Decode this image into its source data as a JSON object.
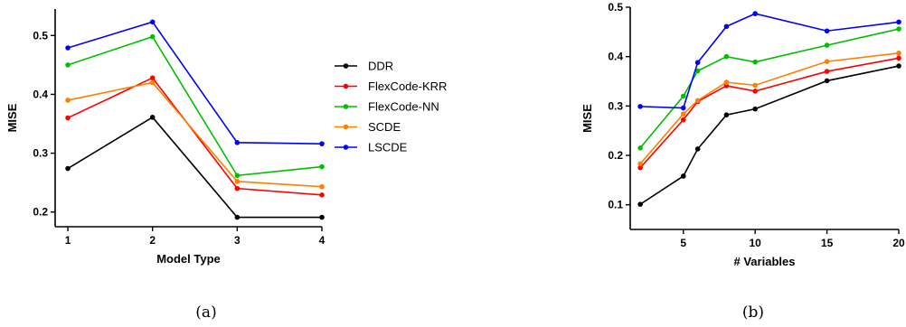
{
  "chart_data": [
    {
      "type": "line",
      "caption": "(a)",
      "xlabel": "Model Type",
      "ylabel": "MISE",
      "xlim": [
        0.85,
        4.0
      ],
      "ylim": [
        0.175,
        0.545
      ],
      "xticks": [
        1,
        2,
        3,
        4
      ],
      "yticks": [
        0.2,
        0.3,
        0.4,
        0.5
      ],
      "x": [
        1,
        2,
        3,
        4
      ],
      "series": [
        {
          "name": "DDR",
          "color": "#000000",
          "values": [
            0.274,
            0.361,
            0.191,
            0.191
          ]
        },
        {
          "name": "FlexCode-KRR",
          "color": "#ff0000",
          "values": [
            0.36,
            0.428,
            0.24,
            0.229
          ]
        },
        {
          "name": "FlexCode-NN",
          "color": "#00bf00",
          "values": [
            0.45,
            0.498,
            0.262,
            0.277
          ]
        },
        {
          "name": "SCDE",
          "color": "#ff8000",
          "values": [
            0.39,
            0.42,
            0.252,
            0.243
          ]
        },
        {
          "name": "LSCDE",
          "color": "#0000ff",
          "values": [
            0.479,
            0.523,
            0.318,
            0.316
          ]
        }
      ],
      "legend": "right"
    },
    {
      "type": "line",
      "caption": "(b)",
      "xlabel": "# Variables",
      "ylabel": "MISE",
      "xlim": [
        1.3,
        20
      ],
      "ylim": [
        0.05,
        0.5
      ],
      "xticks": [
        5,
        10,
        15,
        20
      ],
      "yticks": [
        0.1,
        0.2,
        0.3,
        0.4,
        0.5
      ],
      "x": [
        2,
        5,
        6,
        8,
        10,
        15,
        20
      ],
      "series": [
        {
          "name": "DDR",
          "color": "#000000",
          "values": [
            0.101,
            0.158,
            0.213,
            0.282,
            0.294,
            0.351,
            0.381
          ]
        },
        {
          "name": "FlexCode-KRR",
          "color": "#ff0000",
          "values": [
            0.175,
            0.272,
            0.309,
            0.341,
            0.33,
            0.37,
            0.397
          ]
        },
        {
          "name": "FlexCode-NN",
          "color": "#00bf00",
          "values": [
            0.215,
            0.32,
            0.371,
            0.4,
            0.389,
            0.423,
            0.456
          ]
        },
        {
          "name": "SCDE",
          "color": "#ff8000",
          "values": [
            0.183,
            0.284,
            0.311,
            0.348,
            0.342,
            0.39,
            0.407
          ]
        },
        {
          "name": "LSCDE",
          "color": "#0000ff",
          "values": [
            0.299,
            0.296,
            0.388,
            0.461,
            0.487,
            0.452,
            0.47
          ]
        }
      ]
    }
  ]
}
